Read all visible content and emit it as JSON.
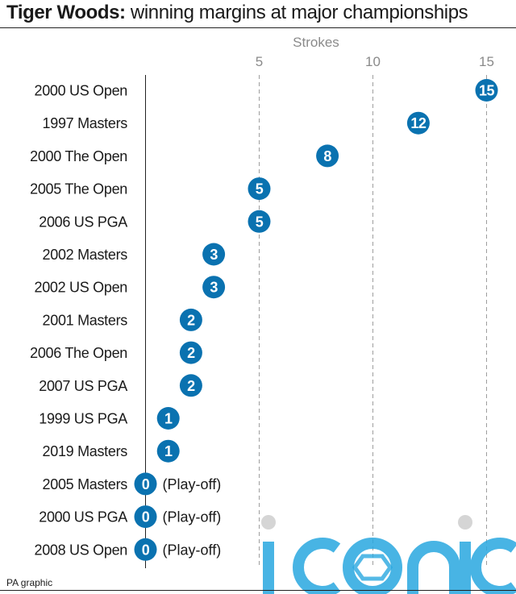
{
  "header": {
    "title_bold": "Tiger Woods:",
    "title_rest": " winning margins at major championships"
  },
  "footer": {
    "credit": "PA graphic"
  },
  "watermark": {
    "text": "iconic"
  },
  "colors": {
    "marker": "#0a72b0",
    "axis": "#222222",
    "grid": "#9e9e9e",
    "tick": "#8a8a8a",
    "watermark": "#29a8e0",
    "watermark_dot": "#d5d5d5"
  },
  "chart_data": {
    "type": "scatter",
    "title": "Tiger Woods: winning margins at major championships",
    "xlabel": "Strokes",
    "ylabel": "",
    "xticks": [
      5,
      10,
      15
    ],
    "xlim": [
      0,
      16
    ],
    "grid": "vertical dashed",
    "categories": [
      "2000 US Open",
      "1997 Masters",
      "2000 The Open",
      "2005 The Open",
      "2006 US PGA",
      "2002 Masters",
      "2002 US Open",
      "2001 Masters",
      "2006 The Open",
      "2007 US PGA",
      "1999 US PGA",
      "2019 Masters",
      "2005 Masters",
      "2000 US PGA",
      "2008 US Open"
    ],
    "values": [
      15,
      12,
      8,
      5,
      5,
      3,
      3,
      2,
      2,
      2,
      1,
      1,
      0,
      0,
      0
    ],
    "annotations": [
      "",
      "",
      "",
      "",
      "",
      "",
      "",
      "",
      "",
      "",
      "",
      "",
      "(Play-off)",
      "(Play-off)",
      "(Play-off)"
    ]
  }
}
